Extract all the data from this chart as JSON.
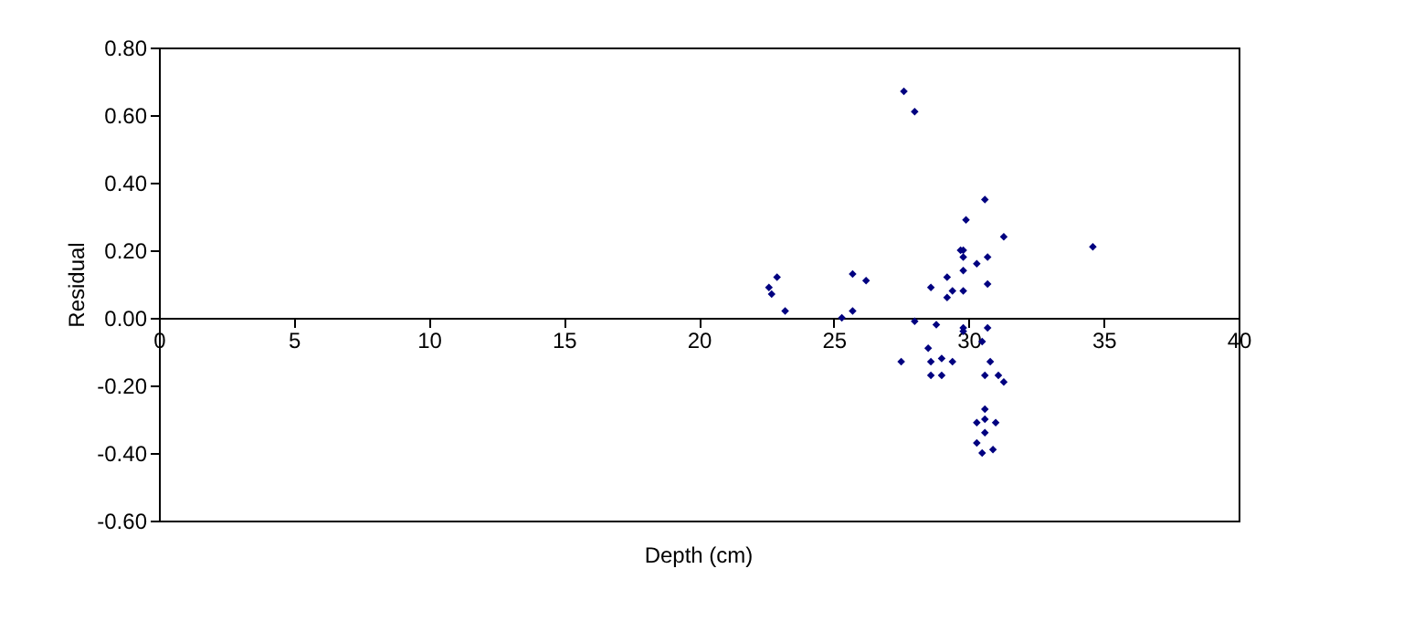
{
  "chart_data": {
    "type": "scatter",
    "xlabel": "Depth (cm)",
    "ylabel": "Residual",
    "x": [
      27.6,
      28.0,
      30.6,
      29.9,
      31.3,
      34.6,
      29.7,
      29.8,
      29.8,
      30.7,
      30.3,
      29.8,
      29.2,
      30.7,
      28.6,
      29.8,
      29.4,
      29.2,
      22.9,
      22.6,
      22.7,
      23.2,
      25.7,
      26.2,
      25.7,
      25.3,
      28.0,
      28.8,
      29.8,
      29.8,
      30.7,
      30.5,
      27.5,
      28.5,
      28.6,
      29.0,
      29.4,
      30.8,
      28.6,
      29.0,
      30.6,
      31.1,
      31.3,
      30.6,
      30.3,
      30.6,
      31.0,
      30.6,
      30.3,
      30.9,
      30.5
    ],
    "series": [
      {
        "color": "#000080",
        "values": [
          0.67,
          0.61,
          0.35,
          0.29,
          0.24,
          0.21,
          0.2,
          0.2,
          0.18,
          0.18,
          0.16,
          0.14,
          0.12,
          0.1,
          0.09,
          0.08,
          0.08,
          0.06,
          0.12,
          0.09,
          0.07,
          0.02,
          0.13,
          0.11,
          0.02,
          0.0,
          -0.01,
          -0.02,
          -0.03,
          -0.04,
          -0.03,
          -0.07,
          -0.13,
          -0.09,
          -0.13,
          -0.12,
          -0.13,
          -0.13,
          -0.17,
          -0.17,
          -0.17,
          -0.17,
          -0.19,
          -0.27,
          -0.31,
          -0.3,
          -0.31,
          -0.34,
          -0.37,
          -0.39,
          -0.4
        ]
      }
    ],
    "xlim": [
      0,
      40
    ],
    "xticks": [
      0,
      5,
      10,
      15,
      20,
      25,
      30,
      35,
      40
    ],
    "ylim": [
      -0.6,
      0.8
    ],
    "yticks": [
      {
        "value": -0.6,
        "label": "-0.60"
      },
      {
        "value": -0.4,
        "label": "-0.40"
      },
      {
        "value": -0.2,
        "label": "-0.20"
      },
      {
        "value": 0,
        "label": "0.00"
      },
      {
        "value": 0.2,
        "label": "0.20"
      },
      {
        "value": 0.4,
        "label": "0.40"
      },
      {
        "value": 0.6,
        "label": "0.60"
      },
      {
        "value": 0.8,
        "label": "0.80"
      }
    ],
    "marker": "diamond",
    "grid": false,
    "legend": false
  }
}
